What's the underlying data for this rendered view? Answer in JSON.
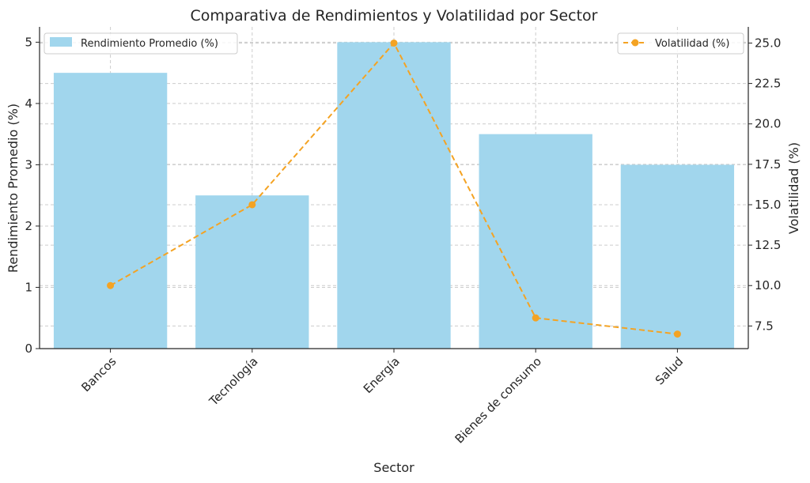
{
  "chart_data": {
    "type": "bar",
    "title": "Comparativa de Rendimientos y Volatilidad por Sector",
    "xlabel": "Sector",
    "ylabel": "Rendimiento Promedio (%)",
    "y2label": "Volatilidad (%)",
    "categories": [
      "Bancos",
      "Tecnología",
      "Energía",
      "Bienes de consumo",
      "Salud"
    ],
    "ylim": [
      0,
      5.25
    ],
    "yticks": [
      0,
      1,
      2,
      3,
      4,
      5
    ],
    "y2lim": [
      6.1,
      26.0
    ],
    "y2ticks": [
      "7.5",
      "10.0",
      "12.5",
      "15.0",
      "17.5",
      "20.0",
      "22.5",
      "25.0"
    ],
    "grid": true,
    "series": [
      {
        "name": "Rendimiento Promedio (%)",
        "type": "bar",
        "axis": "left",
        "color": "#a1d6ed",
        "values": [
          4.5,
          2.5,
          5.0,
          3.5,
          3.0
        ]
      },
      {
        "name": "Volatilidad (%)",
        "type": "line",
        "axis": "right",
        "style": "dashed",
        "marker": "circle",
        "color": "#f4a323",
        "values": [
          10.0,
          15.0,
          25.0,
          8.0,
          7.0
        ]
      }
    ],
    "legend": {
      "bar_position": "top-left",
      "line_position": "top-right"
    }
  }
}
